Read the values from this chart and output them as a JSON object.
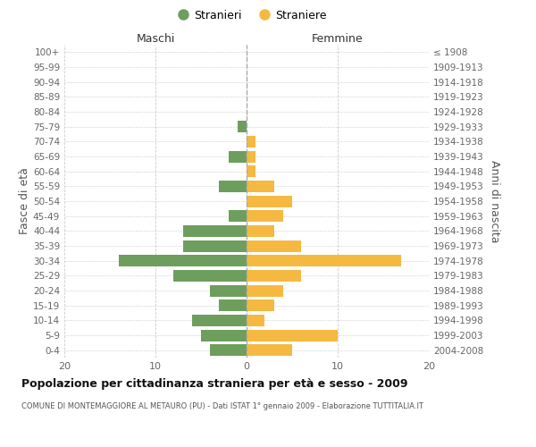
{
  "age_groups": [
    "100+",
    "95-99",
    "90-94",
    "85-89",
    "80-84",
    "75-79",
    "70-74",
    "65-69",
    "60-64",
    "55-59",
    "50-54",
    "45-49",
    "40-44",
    "35-39",
    "30-34",
    "25-29",
    "20-24",
    "15-19",
    "10-14",
    "5-9",
    "0-4"
  ],
  "birth_years": [
    "≤ 1908",
    "1909-1913",
    "1914-1918",
    "1919-1923",
    "1924-1928",
    "1929-1933",
    "1934-1938",
    "1939-1943",
    "1944-1948",
    "1949-1953",
    "1954-1958",
    "1959-1963",
    "1964-1968",
    "1969-1973",
    "1974-1978",
    "1979-1983",
    "1984-1988",
    "1989-1993",
    "1994-1998",
    "1999-2003",
    "2004-2008"
  ],
  "maschi": [
    0,
    0,
    0,
    0,
    0,
    1,
    0,
    2,
    0,
    3,
    0,
    2,
    7,
    7,
    14,
    8,
    4,
    3,
    6,
    5,
    4
  ],
  "femmine": [
    0,
    0,
    0,
    0,
    0,
    0,
    1,
    1,
    1,
    3,
    5,
    4,
    3,
    6,
    17,
    6,
    4,
    3,
    2,
    10,
    5
  ],
  "maschi_color": "#6e9e5e",
  "femmine_color": "#f5b942",
  "background_color": "#ffffff",
  "grid_color": "#cccccc",
  "title": "Popolazione per cittadinanza straniera per età e sesso - 2009",
  "subtitle": "COMUNE DI MONTEMAGGIORE AL METAURO (PU) - Dati ISTAT 1° gennaio 2009 - Elaborazione TUTTITALIA.IT",
  "ylabel_left": "Fasce di età",
  "ylabel_right": "Anni di nascita",
  "xlabel_maschi": "Maschi",
  "xlabel_femmine": "Femmine",
  "legend_maschi": "Stranieri",
  "legend_femmine": "Straniere",
  "xlim": 20
}
